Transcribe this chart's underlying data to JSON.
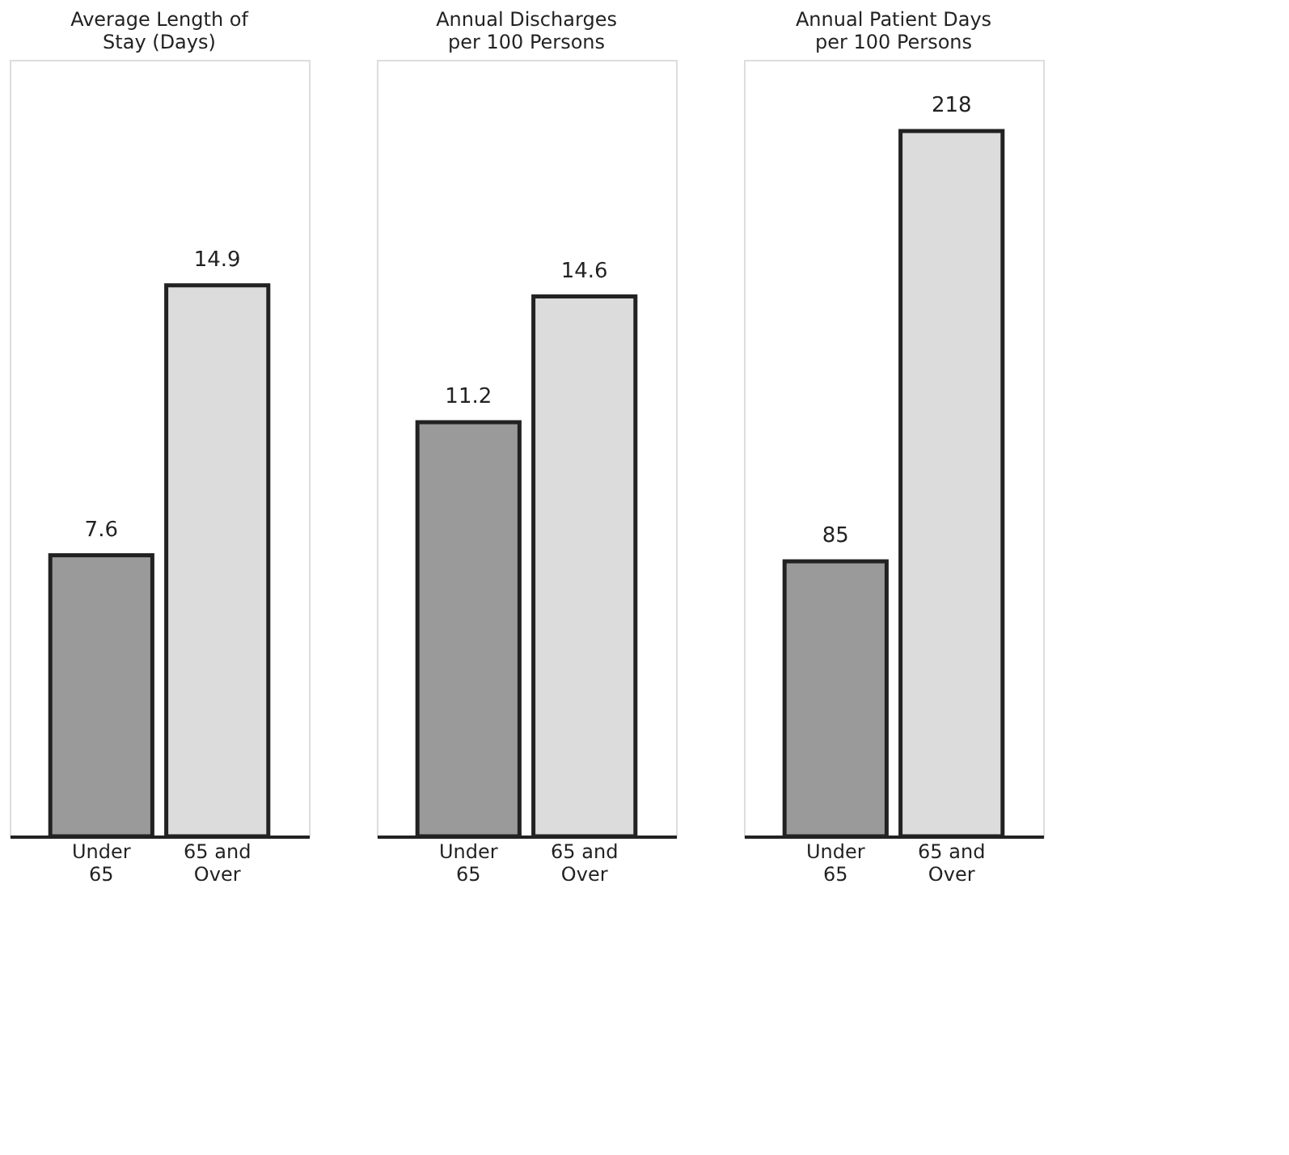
{
  "chart_data": [
    {
      "type": "bar",
      "title": "Average Length of Stay (Days)",
      "categories": [
        "Under 65",
        "65 and Over"
      ],
      "values": [
        7.6,
        14.9
      ],
      "colors": [
        "#9a9a9a",
        "#dcdcdc"
      ],
      "data_labels": true,
      "ylim": [
        0,
        21
      ],
      "grid": false,
      "legend": false
    },
    {
      "type": "bar",
      "title": "Annual Discharges per 100 Persons",
      "categories": [
        "Under 65",
        "65 and Over"
      ],
      "values": [
        11.2,
        14.6
      ],
      "colors": [
        "#9a9a9a",
        "#dcdcdc"
      ],
      "data_labels": true,
      "ylim": [
        0,
        21
      ],
      "grid": false,
      "legend": false
    },
    {
      "type": "bar",
      "title": "Annual Patient Days per 100 Persons",
      "categories": [
        "Under 65",
        "65 and Over"
      ],
      "values": [
        85,
        218
      ],
      "colors": [
        "#9a9a9a",
        "#dcdcdc"
      ],
      "data_labels": true,
      "ylim": [
        0,
        240
      ],
      "grid": false,
      "legend": false
    }
  ]
}
